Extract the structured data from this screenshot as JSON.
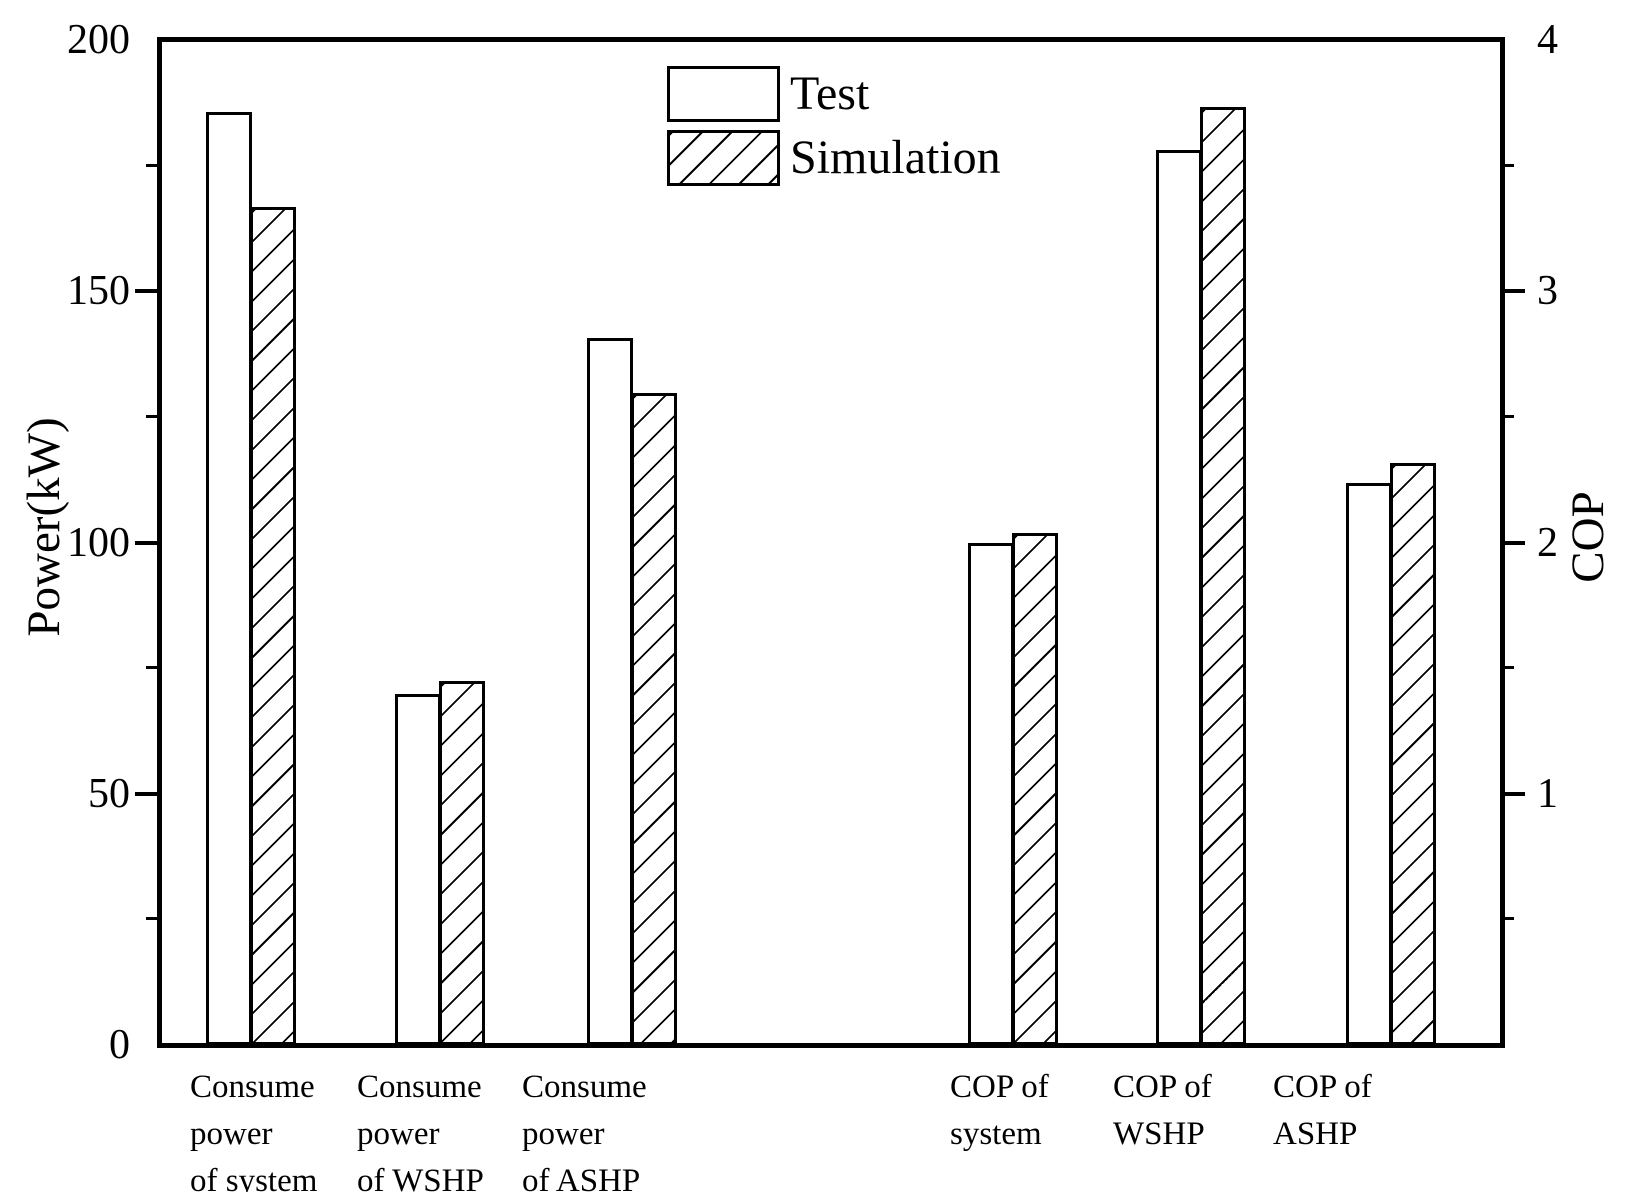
{
  "chart_data": {
    "type": "bar",
    "title": "",
    "categories": [
      "Consume\npower\nof system",
      "Consume\npower\nof WSHP",
      "Consume\npower\nof ASHP",
      "COP of\nsystem",
      "COP of\nWSHP",
      "COP of\nASHP"
    ],
    "category_axis": [
      "left",
      "left",
      "left",
      "right",
      "right",
      "right"
    ],
    "series": [
      {
        "name": "Test",
        "fill": "white",
        "values": [
          186,
          70,
          141,
          2.0,
          3.57,
          2.24
        ]
      },
      {
        "name": "Simulation",
        "fill": "diagonal-hatch",
        "values": [
          167,
          72.5,
          130,
          2.04,
          3.74,
          2.32
        ]
      }
    ],
    "left_axis": {
      "label": "Power(kW)",
      "range": [
        0,
        200
      ],
      "labeled_ticks": [
        0,
        50,
        100,
        150,
        200
      ],
      "minor_tick_step": 25
    },
    "right_axis": {
      "label": "COP",
      "range": [
        0,
        4
      ],
      "labeled_ticks": [
        1,
        2,
        3,
        4
      ],
      "minor_tick_step": 0.5
    },
    "legend": {
      "position": "top-center",
      "entries": [
        "Test",
        "Simulation"
      ]
    },
    "grid": false,
    "colors": {
      "foreground": "#000000",
      "background": "#ffffff"
    }
  }
}
